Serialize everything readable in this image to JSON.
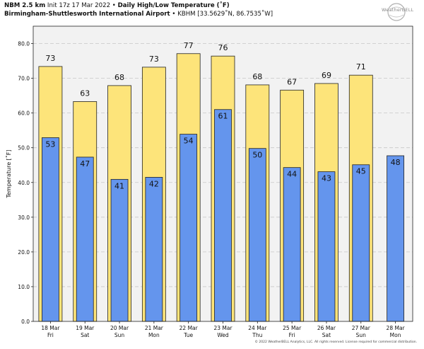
{
  "header": {
    "model": "NBM 2.5 km",
    "init": "Init 17z 17 Mar 2022",
    "bullet": "•",
    "product": "Daily High/Low Temperature (˚F)",
    "location": "Birmingham-Shuttlesworth International Airport",
    "station": "KBHM [33.5629˚N, 86.7535˚W]"
  },
  "logo": {
    "brand": "WeatherBELL"
  },
  "footer": {
    "copyright": "© 2022 WeatherBELL Analytics, LLC. All rights reserved. License required for commercial distribution."
  },
  "colors": {
    "high": "#fde47a",
    "low": "#6495ed",
    "plot_bg": "#f2f2f2",
    "grid": "#c8c8c8"
  },
  "chart_data": {
    "type": "bar",
    "title": "Daily High/Low Temperature (˚F)",
    "ylabel": "Temperature [˚F]",
    "xlabel": "",
    "ylim": [
      0,
      85
    ],
    "yticks": [
      0,
      10,
      20,
      30,
      40,
      50,
      60,
      70,
      80
    ],
    "ytick_labels": [
      "0.0",
      "10.0",
      "20.0",
      "30.0",
      "40.0",
      "50.0",
      "60.0",
      "70.0",
      "80.0"
    ],
    "categories": [
      {
        "date": "18 Mar",
        "day": "Fri"
      },
      {
        "date": "19 Mar",
        "day": "Sat"
      },
      {
        "date": "20 Mar",
        "day": "Sun"
      },
      {
        "date": "21 Mar",
        "day": "Mon"
      },
      {
        "date": "22 Mar",
        "day": "Tue"
      },
      {
        "date": "23 Mar",
        "day": "Wed"
      },
      {
        "date": "24 Mar",
        "day": "Thu"
      },
      {
        "date": "25 Mar",
        "day": "Fri"
      },
      {
        "date": "26 Mar",
        "day": "Sat"
      },
      {
        "date": "27 Mar",
        "day": "Sun"
      },
      {
        "date": "28 Mar",
        "day": "Mon"
      }
    ],
    "series": [
      {
        "name": "High",
        "values": [
          73.4,
          63.3,
          67.9,
          73.2,
          77.1,
          76.4,
          68.1,
          66.6,
          68.5,
          70.9,
          null
        ],
        "labels": [
          "73",
          "63",
          "68",
          "73",
          "77",
          "76",
          "68",
          "67",
          "69",
          "71",
          ""
        ]
      },
      {
        "name": "Low",
        "values": [
          52.9,
          47.3,
          40.9,
          41.5,
          53.9,
          61.0,
          49.8,
          44.3,
          43.1,
          45.1,
          47.7
        ],
        "labels": [
          "53",
          "47",
          "41",
          "42",
          "54",
          "61",
          "50",
          "44",
          "43",
          "45",
          "48"
        ]
      }
    ]
  }
}
